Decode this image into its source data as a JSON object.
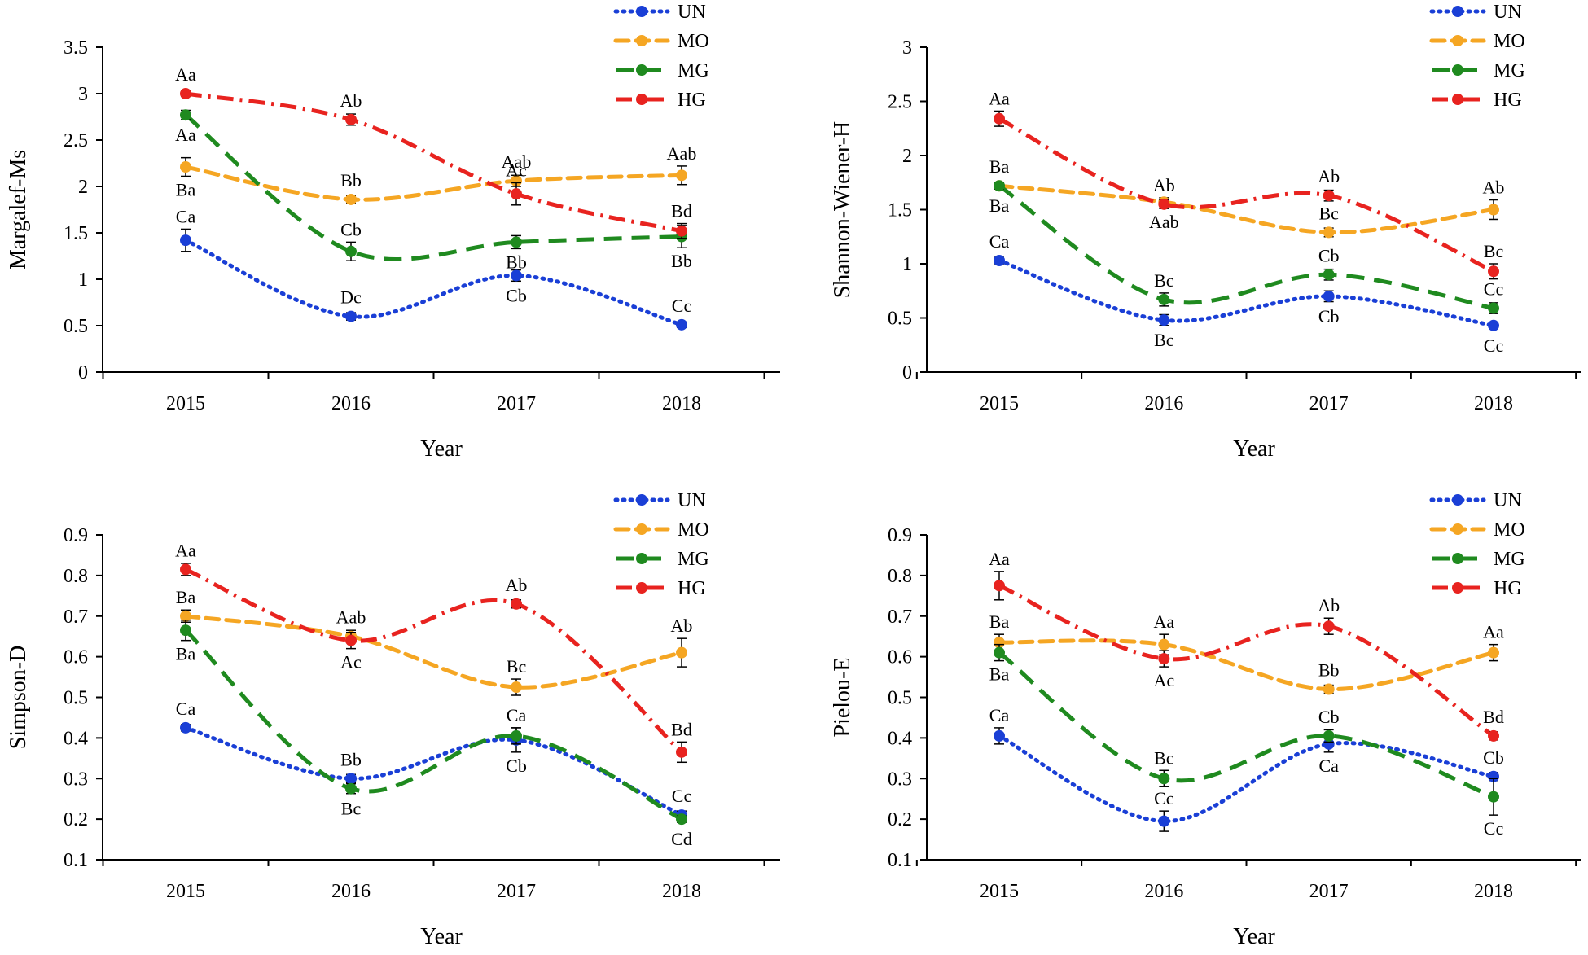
{
  "figure": {
    "colors": {
      "UN": "#1a3fd6",
      "MO": "#f5a623",
      "MG": "#1f8a1f",
      "HG": "#e8231f"
    }
  },
  "chart_data": [
    {
      "type": "line",
      "panel": "top-left",
      "title": "",
      "xlabel": "Year",
      "ylabel": "Margalef-Ms",
      "categories": [
        "2015",
        "2016",
        "2017",
        "2018"
      ],
      "ylim": [
        0,
        3.5
      ],
      "yticks": [
        "0",
        "0.5",
        "1",
        "1.5",
        "2",
        "2.5",
        "3",
        "3.5"
      ],
      "legend": "top-right",
      "series": [
        {
          "name": "UN",
          "values": [
            1.42,
            0.6,
            1.04,
            0.51
          ],
          "errors": [
            0.12,
            0.04,
            0.06,
            0.03
          ],
          "labels": [
            "Ca",
            "Dc",
            "Cb",
            "Cc"
          ],
          "label_side": [
            "above",
            "above",
            "below",
            "above"
          ]
        },
        {
          "name": "MO",
          "values": [
            2.21,
            1.86,
            2.06,
            2.12
          ],
          "errors": [
            0.1,
            0.04,
            0.06,
            0.1
          ],
          "labels": [
            "Ba",
            "Bb",
            "Aab",
            "Aab"
          ],
          "label_side": [
            "below",
            "above",
            "above",
            "above"
          ]
        },
        {
          "name": "MG",
          "values": [
            2.77,
            1.3,
            1.4,
            1.46
          ],
          "errors": [
            0.05,
            0.1,
            0.07,
            0.12
          ],
          "labels": [
            "Aa",
            "Cb",
            "Bb",
            "Bb"
          ],
          "label_side": [
            "below",
            "above",
            "below",
            "below"
          ]
        },
        {
          "name": "HG",
          "values": [
            3.0,
            2.72,
            1.92,
            1.52
          ],
          "errors": [
            0.03,
            0.06,
            0.12,
            0.08
          ],
          "labels": [
            "Aa",
            "Ab",
            "Ac",
            "Bd"
          ],
          "label_side": [
            "above",
            "above",
            "above",
            "above"
          ]
        }
      ]
    },
    {
      "type": "line",
      "panel": "top-right",
      "title": "",
      "xlabel": "Year",
      "ylabel": "Shannon-Wiener-H",
      "categories": [
        "2015",
        "2016",
        "2017",
        "2018"
      ],
      "ylim": [
        0,
        3
      ],
      "yticks": [
        "0",
        "0.5",
        "1",
        "1.5",
        "2",
        "2.5",
        "3"
      ],
      "legend": "top-right",
      "series": [
        {
          "name": "UN",
          "values": [
            1.03,
            0.48,
            0.7,
            0.43
          ],
          "errors": [
            0.03,
            0.05,
            0.05,
            0.03
          ],
          "labels": [
            "Ca",
            "Bc",
            "Cb",
            "Cc"
          ],
          "label_side": [
            "above",
            "below",
            "below",
            "below"
          ]
        },
        {
          "name": "MO",
          "values": [
            1.72,
            1.57,
            1.29,
            1.5
          ],
          "errors": [
            0.03,
            0.04,
            0.04,
            0.09
          ],
          "labels": [
            "Ba",
            "Aab",
            "Bc",
            "Ab"
          ],
          "label_side": [
            "above",
            "below",
            "above",
            "above"
          ]
        },
        {
          "name": "MG",
          "values": [
            1.72,
            0.67,
            0.9,
            0.59
          ],
          "errors": [
            0.03,
            0.06,
            0.05,
            0.05
          ],
          "labels": [
            "Ba",
            "Bc",
            "Cb",
            "Cc"
          ],
          "label_side": [
            "below",
            "above",
            "above",
            "above"
          ]
        },
        {
          "name": "HG",
          "values": [
            2.34,
            1.55,
            1.63,
            0.93
          ],
          "errors": [
            0.07,
            0.04,
            0.05,
            0.07
          ],
          "labels": [
            "Aa",
            "Ab",
            "Ab",
            "Bc"
          ],
          "label_side": [
            "above",
            "above",
            "above",
            "above"
          ]
        }
      ]
    },
    {
      "type": "line",
      "panel": "bottom-left",
      "title": "",
      "xlabel": "Year",
      "ylabel": "Simpson-D",
      "categories": [
        "2015",
        "2016",
        "2017",
        "2018"
      ],
      "ylim": [
        0.1,
        0.9
      ],
      "yticks": [
        "0.1",
        "0.2",
        "0.3",
        "0.4",
        "0.5",
        "0.6",
        "0.7",
        "0.8",
        "0.9"
      ],
      "legend": "top-right",
      "series": [
        {
          "name": "UN",
          "values": [
            0.425,
            0.3,
            0.395,
            0.21
          ],
          "errors": [
            0.008,
            0.01,
            0.03,
            0.01
          ],
          "labels": [
            "Ca",
            "Bb",
            "Cb",
            "Cc"
          ],
          "label_side": [
            "above",
            "above",
            "below",
            "above"
          ]
        },
        {
          "name": "MO",
          "values": [
            0.7,
            0.65,
            0.525,
            0.61
          ],
          "errors": [
            0.015,
            0.015,
            0.02,
            0.035
          ],
          "labels": [
            "Ba",
            "Aab",
            "Bc",
            "Ab"
          ],
          "label_side": [
            "above",
            "above",
            "above",
            "above"
          ]
        },
        {
          "name": "MG",
          "values": [
            0.665,
            0.275,
            0.405,
            0.2
          ],
          "errors": [
            0.025,
            0.012,
            0.02,
            0.008
          ],
          "labels": [
            "Ba",
            "Bc",
            "Ca",
            "Cd"
          ],
          "label_side": [
            "below",
            "below",
            "above",
            "below"
          ]
        },
        {
          "name": "HG",
          "values": [
            0.815,
            0.64,
            0.73,
            0.365
          ],
          "errors": [
            0.015,
            0.02,
            0.01,
            0.025
          ],
          "labels": [
            "Aa",
            "Ac",
            "Ab",
            "Bd"
          ],
          "label_side": [
            "above",
            "below",
            "above",
            "above"
          ]
        }
      ]
    },
    {
      "type": "line",
      "panel": "bottom-right",
      "title": "",
      "xlabel": "Year",
      "ylabel": "Pielou-E",
      "categories": [
        "2015",
        "2016",
        "2017",
        "2018"
      ],
      "ylim": [
        0.1,
        0.9
      ],
      "yticks": [
        "0.1",
        "0.2",
        "0.3",
        "0.4",
        "0.5",
        "0.6",
        "0.7",
        "0.8",
        "0.9"
      ],
      "legend": "top-right",
      "series": [
        {
          "name": "UN",
          "values": [
            0.405,
            0.195,
            0.385,
            0.305
          ],
          "errors": [
            0.02,
            0.025,
            0.02,
            0.01
          ],
          "labels": [
            "Ca",
            "Cc",
            "Ca",
            "Cb"
          ],
          "label_side": [
            "above",
            "above",
            "below",
            "above"
          ]
        },
        {
          "name": "MO",
          "values": [
            0.635,
            0.63,
            0.52,
            0.61
          ],
          "errors": [
            0.02,
            0.025,
            0.01,
            0.02
          ],
          "labels": [
            "Ba",
            "Aa",
            "Bb",
            "Aa"
          ],
          "label_side": [
            "above",
            "above",
            "above",
            "above"
          ]
        },
        {
          "name": "MG",
          "values": [
            0.61,
            0.3,
            0.405,
            0.255
          ],
          "errors": [
            0.02,
            0.02,
            0.015,
            0.045
          ],
          "labels": [
            "Ba",
            "Bc",
            "Cb",
            "Cc"
          ],
          "label_side": [
            "below",
            "above",
            "above",
            "below"
          ]
        },
        {
          "name": "HG",
          "values": [
            0.775,
            0.595,
            0.675,
            0.405
          ],
          "errors": [
            0.035,
            0.02,
            0.02,
            0.01
          ],
          "labels": [
            "Aa",
            "Ac",
            "Ab",
            "Bd"
          ],
          "label_side": [
            "above",
            "below",
            "above",
            "above"
          ]
        }
      ]
    }
  ]
}
